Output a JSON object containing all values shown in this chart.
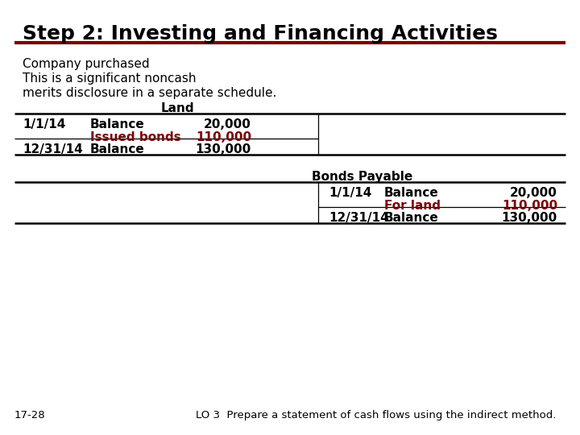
{
  "title": "Step 2: Investing and Financing Activities",
  "title_color": "#000000",
  "title_fontsize": 18,
  "bg_color": "#FFFFFF",
  "dark_red": "#7B0000",
  "separator_color": "#7B0000",
  "body_fontsize": 11,
  "table_fontsize": 11,
  "footer_left": "17-28",
  "footer_right": "LO 3  Prepare a statement of cash flows using the indirect method.",
  "footer_fontsize": 9.5
}
